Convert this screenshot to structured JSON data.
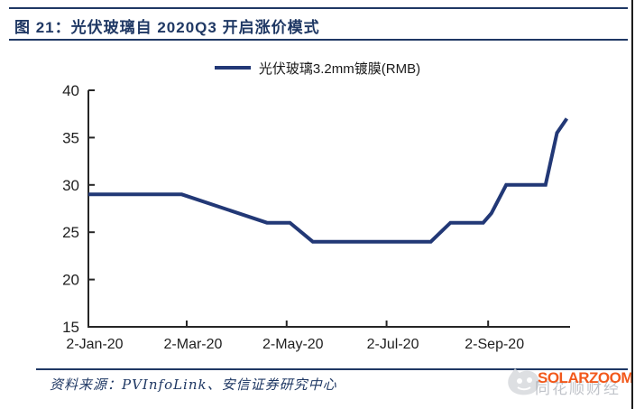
{
  "figure": {
    "title": "图 21：光伏玻璃自 2020Q3 开启涨价模式",
    "source_note": "资料来源：PVInfoLink、安信证券研究中心"
  },
  "legend": {
    "label": "光伏玻璃3.2mm镀膜(RMB)"
  },
  "watermark": {
    "brand": "SOLARZOOM",
    "background_text": "同花顺财经",
    "logo_icon": "mascot-blob-icon"
  },
  "colors": {
    "navy": "#1F3864",
    "line": "#223876",
    "axis": "#262626",
    "tick_label": "#1f1f1f",
    "orange": "#F2591C",
    "watermark_gray": "#8d939e"
  },
  "chart_data": {
    "type": "line",
    "title": "光伏玻璃自 2020Q3 开启涨价模式",
    "xlabel": "",
    "ylabel": "",
    "ylim": [
      15,
      40
    ],
    "y_ticks": [
      15,
      20,
      25,
      30,
      35,
      40
    ],
    "x_tick_labels": [
      "2-Jan-20",
      "2-Mar-20",
      "2-May-20",
      "2-Jul-20",
      "2-Sep-20"
    ],
    "x_tick_dates": [
      "2020-01-02",
      "2020-03-02",
      "2020-05-02",
      "2020-07-02",
      "2020-09-02"
    ],
    "x_domain": [
      "2020-01-02",
      "2020-10-22"
    ],
    "grid": false,
    "legend_position": "top-center",
    "series": [
      {
        "name": "光伏玻璃3.2mm镀膜(RMB)",
        "points": [
          {
            "date": "2020-01-02",
            "value": 29
          },
          {
            "date": "2020-02-28",
            "value": 29
          },
          {
            "date": "2020-04-20",
            "value": 26
          },
          {
            "date": "2020-05-04",
            "value": 26
          },
          {
            "date": "2020-05-18",
            "value": 24
          },
          {
            "date": "2020-07-29",
            "value": 24
          },
          {
            "date": "2020-08-10",
            "value": 26
          },
          {
            "date": "2020-08-30",
            "value": 26
          },
          {
            "date": "2020-09-04",
            "value": 27
          },
          {
            "date": "2020-09-13",
            "value": 30
          },
          {
            "date": "2020-10-07",
            "value": 30
          },
          {
            "date": "2020-10-14",
            "value": 35.5
          },
          {
            "date": "2020-10-20",
            "value": 37
          }
        ]
      }
    ]
  }
}
